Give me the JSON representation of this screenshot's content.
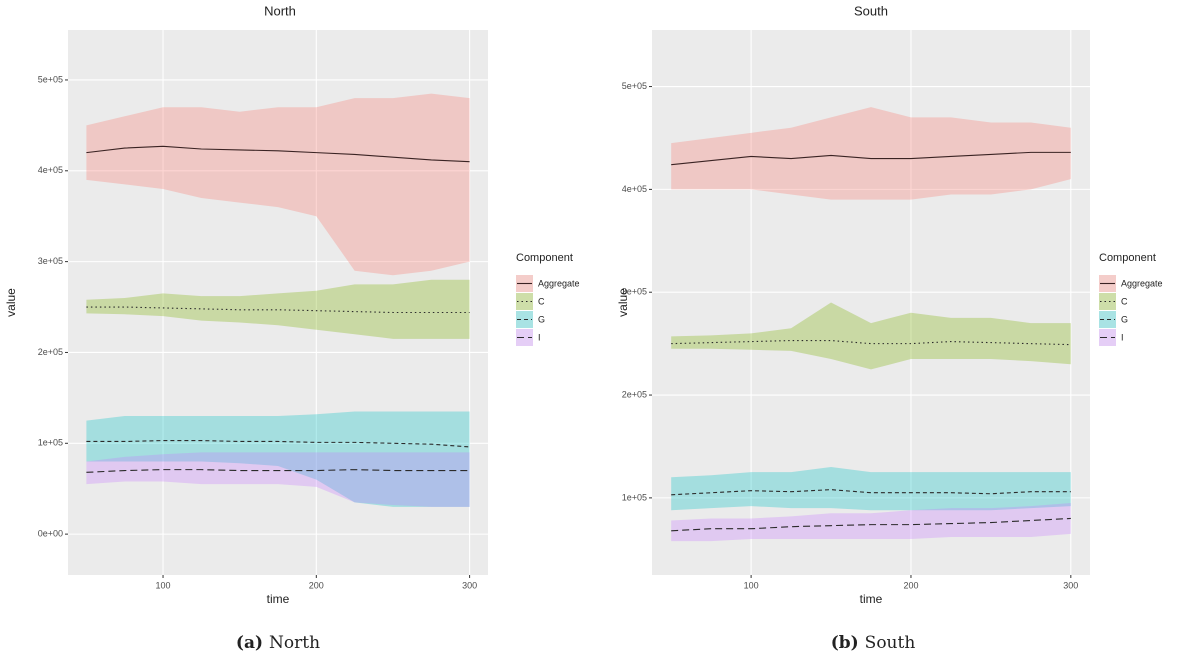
{
  "chart_data": [
    {
      "type": "line",
      "title": "North",
      "caption_label": "(a)",
      "caption": "North",
      "x_label": "time",
      "y_label": "value",
      "legend_title": "Component",
      "grid": true,
      "xlim": [
        38,
        312
      ],
      "xticks": [
        100,
        200,
        300
      ],
      "ylim": [
        -45000,
        555000
      ],
      "yticks": [
        {
          "value": 0,
          "label": "0e+00"
        },
        {
          "value": 100000,
          "label": "1e+05"
        },
        {
          "value": 200000,
          "label": "2e+05"
        },
        {
          "value": 300000,
          "label": "3e+05"
        },
        {
          "value": 400000,
          "label": "4e+05"
        },
        {
          "value": 500000,
          "label": "5e+05"
        }
      ],
      "x": [
        50,
        75,
        100,
        125,
        150,
        175,
        200,
        225,
        250,
        275,
        300
      ],
      "series": [
        {
          "name": "Aggregate",
          "color": "#f8766d",
          "line_color": "#3a2323",
          "linetype": "solid",
          "values": [
            420000,
            425000,
            427000,
            424000,
            423000,
            422000,
            420000,
            418000,
            415000,
            412000,
            410000
          ],
          "upper": [
            450000,
            460000,
            470000,
            470000,
            465000,
            470000,
            470000,
            480000,
            480000,
            485000,
            480000
          ],
          "lower": [
            390000,
            385000,
            380000,
            370000,
            365000,
            360000,
            350000,
            290000,
            285000,
            290000,
            300000
          ]
        },
        {
          "name": "C",
          "color": "#7cae00",
          "line_color": "#2b2b2b",
          "linetype": "dotted",
          "values": [
            250000,
            250000,
            249000,
            248000,
            247000,
            247000,
            246000,
            245000,
            244000,
            244000,
            244000
          ],
          "upper": [
            258000,
            260000,
            265000,
            262000,
            262000,
            265000,
            268000,
            275000,
            275000,
            280000,
            280000
          ],
          "lower": [
            243000,
            242000,
            240000,
            235000,
            233000,
            230000,
            225000,
            220000,
            215000,
            215000,
            215000
          ]
        },
        {
          "name": "G",
          "color": "#00bfc4",
          "line_color": "#2b2b2b",
          "linetype": "dashed",
          "values": [
            102000,
            102000,
            103000,
            103000,
            102000,
            102000,
            101000,
            101000,
            100000,
            99000,
            96000
          ],
          "upper": [
            125000,
            130000,
            130000,
            130000,
            130000,
            130000,
            132000,
            135000,
            135000,
            135000,
            135000
          ],
          "lower": [
            80000,
            80000,
            80000,
            80000,
            78000,
            75000,
            60000,
            35000,
            30000,
            30000,
            30000
          ]
        },
        {
          "name": "I",
          "color": "#c77cff",
          "line_color": "#2b2b2b",
          "linetype": "longdash",
          "values": [
            68000,
            70000,
            71000,
            71000,
            70000,
            70000,
            70000,
            71000,
            70000,
            70000,
            70000
          ],
          "upper": [
            80000,
            85000,
            88000,
            90000,
            90000,
            90000,
            90000,
            90000,
            90000,
            90000,
            90000
          ],
          "lower": [
            55000,
            58000,
            58000,
            55000,
            55000,
            55000,
            52000,
            35000,
            32000,
            30000,
            30000
          ]
        }
      ]
    },
    {
      "type": "line",
      "title": "South",
      "caption_label": "(b)",
      "caption": "South",
      "x_label": "time",
      "y_label": "value",
      "legend_title": "Component",
      "grid": true,
      "xlim": [
        38,
        312
      ],
      "xticks": [
        100,
        200,
        300
      ],
      "ylim": [
        25000,
        555000
      ],
      "yticks": [
        {
          "value": 100000,
          "label": "1e+05"
        },
        {
          "value": 200000,
          "label": "2e+05"
        },
        {
          "value": 300000,
          "label": "3e+05"
        },
        {
          "value": 400000,
          "label": "4e+05"
        },
        {
          "value": 500000,
          "label": "5e+05"
        }
      ],
      "x": [
        50,
        75,
        100,
        125,
        150,
        175,
        200,
        225,
        250,
        275,
        300
      ],
      "series": [
        {
          "name": "Aggregate",
          "color": "#f8766d",
          "line_color": "#3a2323",
          "linetype": "solid",
          "values": [
            424000,
            428000,
            432000,
            430000,
            433000,
            430000,
            430000,
            432000,
            434000,
            436000,
            436000
          ],
          "upper": [
            445000,
            450000,
            455000,
            460000,
            470000,
            480000,
            470000,
            470000,
            465000,
            465000,
            460000
          ],
          "lower": [
            400000,
            400000,
            400000,
            395000,
            390000,
            390000,
            390000,
            395000,
            395000,
            400000,
            410000
          ]
        },
        {
          "name": "C",
          "color": "#7cae00",
          "line_color": "#2b2b2b",
          "linetype": "dotted",
          "values": [
            250000,
            251000,
            252000,
            253000,
            253000,
            250000,
            250000,
            252000,
            251000,
            250000,
            249000
          ],
          "upper": [
            257000,
            258000,
            260000,
            265000,
            290000,
            270000,
            280000,
            275000,
            275000,
            270000,
            270000
          ],
          "lower": [
            245000,
            245000,
            244000,
            243000,
            235000,
            225000,
            235000,
            235000,
            235000,
            233000,
            230000
          ]
        },
        {
          "name": "G",
          "color": "#00bfc4",
          "line_color": "#2b2b2b",
          "linetype": "dashed",
          "values": [
            103000,
            105000,
            107000,
            106000,
            108000,
            105000,
            105000,
            105000,
            104000,
            106000,
            106000
          ],
          "upper": [
            120000,
            122000,
            125000,
            125000,
            130000,
            125000,
            125000,
            125000,
            125000,
            125000,
            125000
          ],
          "lower": [
            88000,
            90000,
            92000,
            90000,
            90000,
            88000,
            88000,
            88000,
            88000,
            90000,
            92000
          ]
        },
        {
          "name": "I",
          "color": "#c77cff",
          "line_color": "#2b2b2b",
          "linetype": "longdash",
          "values": [
            68000,
            70000,
            70000,
            72000,
            73000,
            74000,
            74000,
            75000,
            76000,
            78000,
            80000
          ],
          "upper": [
            78000,
            80000,
            80000,
            82000,
            85000,
            85000,
            88000,
            90000,
            90000,
            92000,
            95000
          ],
          "lower": [
            58000,
            58000,
            60000,
            60000,
            60000,
            60000,
            60000,
            62000,
            62000,
            62000,
            65000
          ]
        }
      ]
    }
  ]
}
